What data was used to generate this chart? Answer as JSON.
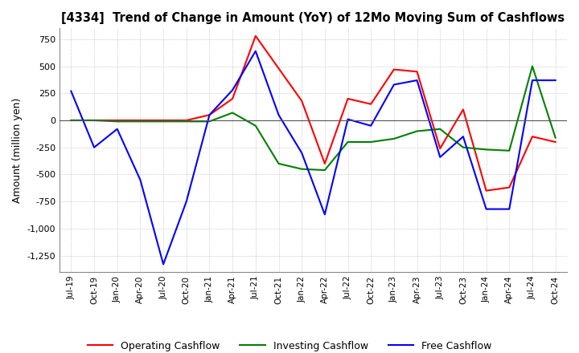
{
  "title": "[4334]  Trend of Change in Amount (YoY) of 12Mo Moving Sum of Cashflows",
  "ylabel": "Amount (million yen)",
  "ylim": [
    -1400,
    850
  ],
  "yticks": [
    750,
    500,
    250,
    0,
    -250,
    -500,
    -750,
    -1000,
    -1250
  ],
  "x_labels": [
    "Jul-19",
    "Oct-19",
    "Jan-20",
    "Apr-20",
    "Jul-20",
    "Oct-20",
    "Jan-21",
    "Apr-21",
    "Jul-21",
    "Oct-21",
    "Jan-22",
    "Apr-22",
    "Jul-22",
    "Oct-22",
    "Jan-23",
    "Apr-23",
    "Jul-23",
    "Oct-23",
    "Jan-24",
    "Apr-24",
    "Jul-24",
    "Oct-24"
  ],
  "operating": [
    0,
    0,
    0,
    0,
    0,
    0,
    50,
    200,
    780,
    480,
    180,
    -400,
    200,
    150,
    470,
    450,
    -260,
    100,
    -650,
    -620,
    -150,
    -200
  ],
  "investing": [
    0,
    0,
    -10,
    -10,
    -10,
    -10,
    -10,
    70,
    -50,
    -400,
    -450,
    -460,
    -200,
    -200,
    -170,
    -100,
    -80,
    -250,
    -270,
    -280,
    500,
    -160
  ],
  "free": [
    270,
    -250,
    -80,
    -550,
    -1330,
    -750,
    50,
    280,
    640,
    50,
    -300,
    -870,
    10,
    -50,
    330,
    370,
    -340,
    -150,
    -820,
    -820,
    370,
    370
  ],
  "operating_color": "#ff0000",
  "investing_color": "#008000",
  "free_color": "#0000ff",
  "background_color": "#ffffff",
  "grid_color": "#aaaaaa"
}
